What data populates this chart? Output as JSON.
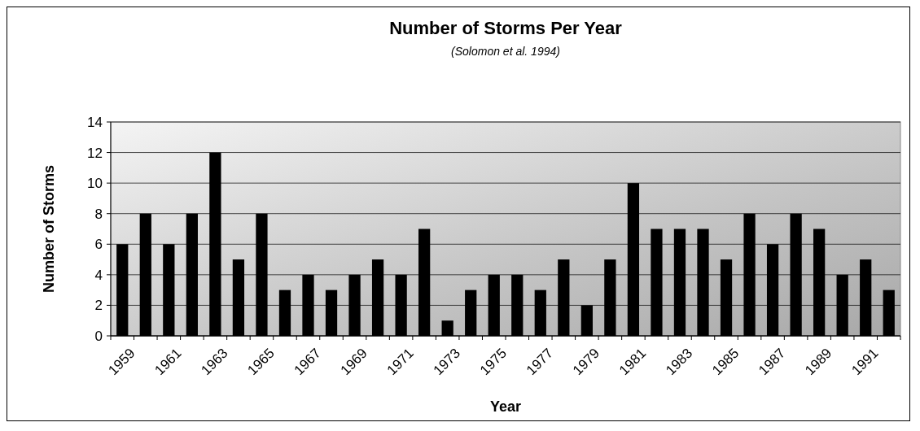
{
  "chart_data": {
    "type": "bar",
    "title": "Number of Storms Per Year",
    "subtitle": "(Solomon et al. 1994)",
    "xlabel": "Year",
    "ylabel": "Number of Storms",
    "categories": [
      "1959",
      null,
      "1961",
      null,
      "1963",
      null,
      "1965",
      null,
      "1967",
      null,
      "1969",
      null,
      "1971",
      null,
      "1973",
      null,
      "1975",
      null,
      "1977",
      null,
      "1979",
      null,
      "1981",
      null,
      "1983",
      null,
      "1985",
      null,
      "1987",
      null,
      "1989",
      null,
      "1991",
      null
    ],
    "values": [
      6,
      8,
      6,
      8,
      12,
      5,
      8,
      3,
      4,
      3,
      4,
      5,
      4,
      7,
      1,
      3,
      4,
      4,
      3,
      5,
      2,
      5,
      10,
      7,
      7,
      7,
      5,
      8,
      6,
      8,
      7,
      4,
      5,
      3
    ],
    "color": "#000000",
    "ylim": [
      0,
      14
    ],
    "yticks": [
      0,
      2,
      4,
      6,
      8,
      10,
      12,
      14
    ],
    "grid": "y"
  }
}
